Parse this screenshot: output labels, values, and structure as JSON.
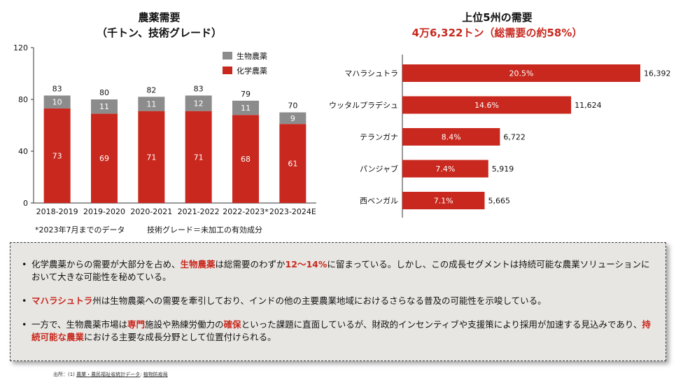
{
  "left": {
    "title": "農薬需要",
    "subtitle": "（千トン、技術グレード）",
    "note1": "*2023年7月までのデータ",
    "note2": "技術グレード＝未加工の有効成分"
  },
  "right": {
    "title": "上位5州の需要",
    "subtitle": "4万6,322トン（総需要の約58%）"
  },
  "colors": {
    "red": "#c8281e",
    "gray": "#8c8c8c"
  },
  "chart_data": [
    {
      "type": "bar",
      "stacked": true,
      "categories": [
        "2018-2019",
        "2019-2020",
        "2020-2021",
        "2021-2022",
        "2022-2023*",
        "2023-2024E"
      ],
      "series": [
        {
          "name": "化学農薬",
          "values": [
            73,
            69,
            71,
            71,
            68,
            61
          ]
        },
        {
          "name": "生物農薬",
          "values": [
            10,
            11,
            11,
            12,
            11,
            9
          ]
        }
      ],
      "totals": [
        "83",
        "80",
        "82",
        "83",
        "79",
        "70"
      ],
      "ylim": [
        0,
        120
      ],
      "yticks": [
        "0",
        "40",
        "80",
        "120"
      ],
      "legend": [
        "生物農薬",
        "化学農薬"
      ],
      "legend_position": "top-right"
    },
    {
      "type": "bar",
      "orientation": "horizontal",
      "categories": [
        "マハラシュトラ",
        "ウッタルプラデシュ",
        "テランガナ",
        "パンジャブ",
        "西ベンガル"
      ],
      "values": [
        16392,
        11624,
        6722,
        5919,
        5665
      ],
      "value_labels": [
        "16,392",
        "11,624",
        "6,722",
        "5,919",
        "5,665"
      ],
      "percent_labels": [
        "20.5%",
        "14.6%",
        "8.4%",
        "7.4%",
        "7.1%"
      ]
    }
  ],
  "summary": {
    "b1": {
      "p1": "化学農薬からの需要が大部分を占め、",
      "h1": "生物農薬",
      "p2": "は総需要のわずか",
      "h2": "12〜14%",
      "p3": "に留まっている。しかし、この成長セグメントは持続可能な農業ソリューションにおいて大きな可能性を秘めている。"
    },
    "b2": {
      "h1": "マハラシュトラ",
      "p1": "州は生物農薬への需要を牽引しており、インドの他の主要農業地域におけるさらなる普及の可能性を示唆している。"
    },
    "b3": {
      "p1": "一方で、生物農薬市場は",
      "h1": "専門",
      "p2": "施設や熟練労働力の",
      "h2": "確保",
      "p3": "といった課題に直面しているが、財政的インセンティブや支援策により採用が加速する見込みであり、",
      "h3": "持続可能な農業",
      "p4": "における主要な成長分野として位置付けられる。"
    }
  },
  "source": {
    "prefix": "出所：(1) ",
    "link": "農業・農民福祉省統計データ",
    "sep": "; ",
    "link2": "植物防疫局"
  }
}
